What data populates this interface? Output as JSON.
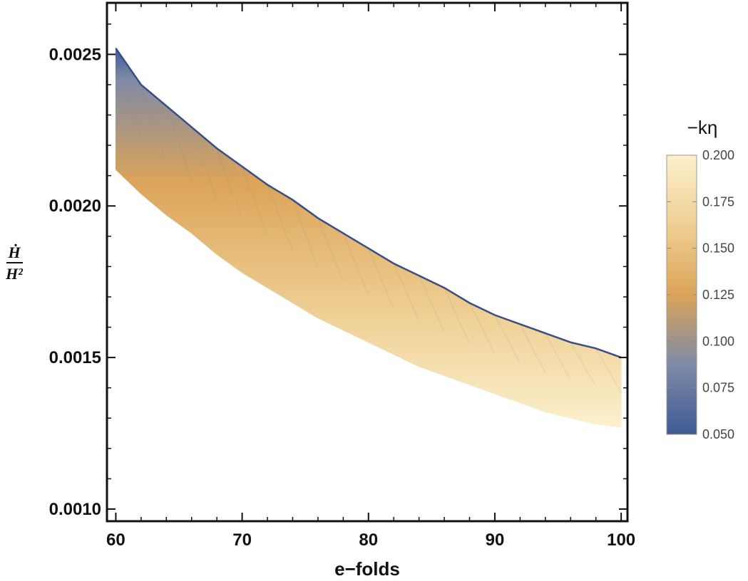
{
  "chart_data": {
    "type": "band-density",
    "xlabel": "e−folds",
    "ylabel": {
      "numerator": "Ḣ",
      "denominator": "H²"
    },
    "xlim": [
      59.3,
      100.5
    ],
    "ylim": [
      0.00096,
      0.00267
    ],
    "x_ticks": [
      {
        "value": 60,
        "label": "60"
      },
      {
        "value": 70,
        "label": "70"
      },
      {
        "value": 80,
        "label": "80"
      },
      {
        "value": 90,
        "label": "90"
      },
      {
        "value": 100,
        "label": "100"
      }
    ],
    "y_ticks": [
      {
        "value": 0.001,
        "label": "0.0010"
      },
      {
        "value": 0.0015,
        "label": "0.0015"
      },
      {
        "value": 0.002,
        "label": "0.0020"
      },
      {
        "value": 0.0025,
        "label": "0.0025"
      }
    ],
    "band": {
      "x": [
        60,
        62,
        64,
        66,
        68,
        70,
        72,
        74,
        76,
        78,
        80,
        82,
        84,
        86,
        88,
        90,
        92,
        94,
        96,
        98,
        100
      ],
      "upper": [
        0.00252,
        0.0024,
        0.00233,
        0.00226,
        0.00219,
        0.00213,
        0.00207,
        0.00202,
        0.00196,
        0.00191,
        0.00186,
        0.00181,
        0.00177,
        0.00173,
        0.00168,
        0.00164,
        0.00161,
        0.00158,
        0.00155,
        0.00153,
        0.0015
      ],
      "lower": [
        0.00212,
        0.00204,
        0.00197,
        0.00191,
        0.00184,
        0.00178,
        0.00173,
        0.00168,
        0.00163,
        0.00159,
        0.00155,
        0.00151,
        0.00147,
        0.00144,
        0.00141,
        0.00138,
        0.00135,
        0.00132,
        0.0013,
        0.00128,
        0.00127
      ]
    },
    "colorbar": {
      "title": "−kη",
      "range": [
        0.05,
        0.2
      ],
      "ticks": [
        {
          "value": 0.2,
          "label": "0.200"
        },
        {
          "value": 0.175,
          "label": "0.175"
        },
        {
          "value": 0.15,
          "label": "0.150"
        },
        {
          "value": 0.125,
          "label": "0.125"
        },
        {
          "value": 0.1,
          "label": "0.100"
        },
        {
          "value": 0.075,
          "label": "0.075"
        },
        {
          "value": 0.05,
          "label": "0.050"
        }
      ],
      "colors": [
        "#3f5a94",
        "#7e8aa6",
        "#dba459",
        "#efcf94",
        "#fcf0cd"
      ]
    }
  }
}
